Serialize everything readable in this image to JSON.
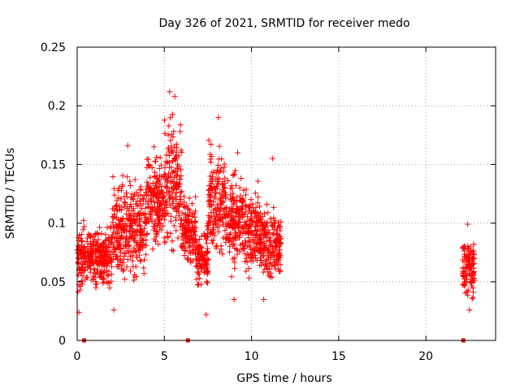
{
  "chart_data": {
    "type": "scatter",
    "title": "Day 326 of 2021, SRMTID for receiver medo",
    "xlabel": "GPS time / hours",
    "ylabel": "SRMTID / TECUs",
    "xlim": [
      0,
      24
    ],
    "ylim": [
      0,
      0.25
    ],
    "x_ticks": [
      "0",
      "5",
      "10",
      "15",
      "20"
    ],
    "y_ticks": [
      "0",
      "0.05",
      "0.1",
      "0.15",
      "0.2",
      "0.25"
    ],
    "grid": true,
    "legend": "none",
    "colors": {
      "points": "#ff0000",
      "markers": "#dd0000",
      "grid": "#a0a0a0"
    },
    "axis_markers_x": [
      0.4,
      6.35,
      22.15
    ],
    "segments": [
      {
        "x": [
          0.0,
          2.0
        ],
        "y": [
          0.035,
          0.108
        ]
      },
      {
        "x": [
          2.0,
          4.0
        ],
        "y": [
          0.04,
          0.15
        ]
      },
      {
        "x": [
          4.0,
          5.0
        ],
        "y": [
          0.07,
          0.17
        ]
      },
      {
        "x": [
          5.0,
          6.0
        ],
        "y": [
          0.06,
          0.205
        ]
      },
      {
        "x": [
          6.0,
          6.8
        ],
        "y": [
          0.055,
          0.13
        ]
      },
      {
        "x": [
          6.8,
          7.5
        ],
        "y": [
          0.04,
          0.105
        ]
      },
      {
        "x": [
          7.5,
          8.5
        ],
        "y": [
          0.06,
          0.18
        ]
      },
      {
        "x": [
          8.5,
          9.5
        ],
        "y": [
          0.05,
          0.155
        ]
      },
      {
        "x": [
          9.5,
          10.5
        ],
        "y": [
          0.045,
          0.14
        ]
      },
      {
        "x": [
          10.5,
          11.7
        ],
        "y": [
          0.045,
          0.12
        ]
      },
      {
        "x": [
          22.1,
          22.8
        ],
        "y": [
          0.03,
          0.095
        ]
      }
    ],
    "extra_points": [
      {
        "x": 5.3,
        "y": 0.212
      },
      {
        "x": 5.6,
        "y": 0.208
      },
      {
        "x": 8.1,
        "y": 0.19
      },
      {
        "x": 7.4,
        "y": 0.022
      },
      {
        "x": 0.1,
        "y": 0.024
      },
      {
        "x": 2.1,
        "y": 0.026
      },
      {
        "x": 4.4,
        "y": 0.165
      },
      {
        "x": 2.9,
        "y": 0.166
      },
      {
        "x": 9.2,
        "y": 0.16
      },
      {
        "x": 11.2,
        "y": 0.155
      },
      {
        "x": 22.4,
        "y": 0.099
      },
      {
        "x": 22.5,
        "y": 0.026
      },
      {
        "x": 10.7,
        "y": 0.035
      },
      {
        "x": 9.0,
        "y": 0.035
      }
    ]
  }
}
